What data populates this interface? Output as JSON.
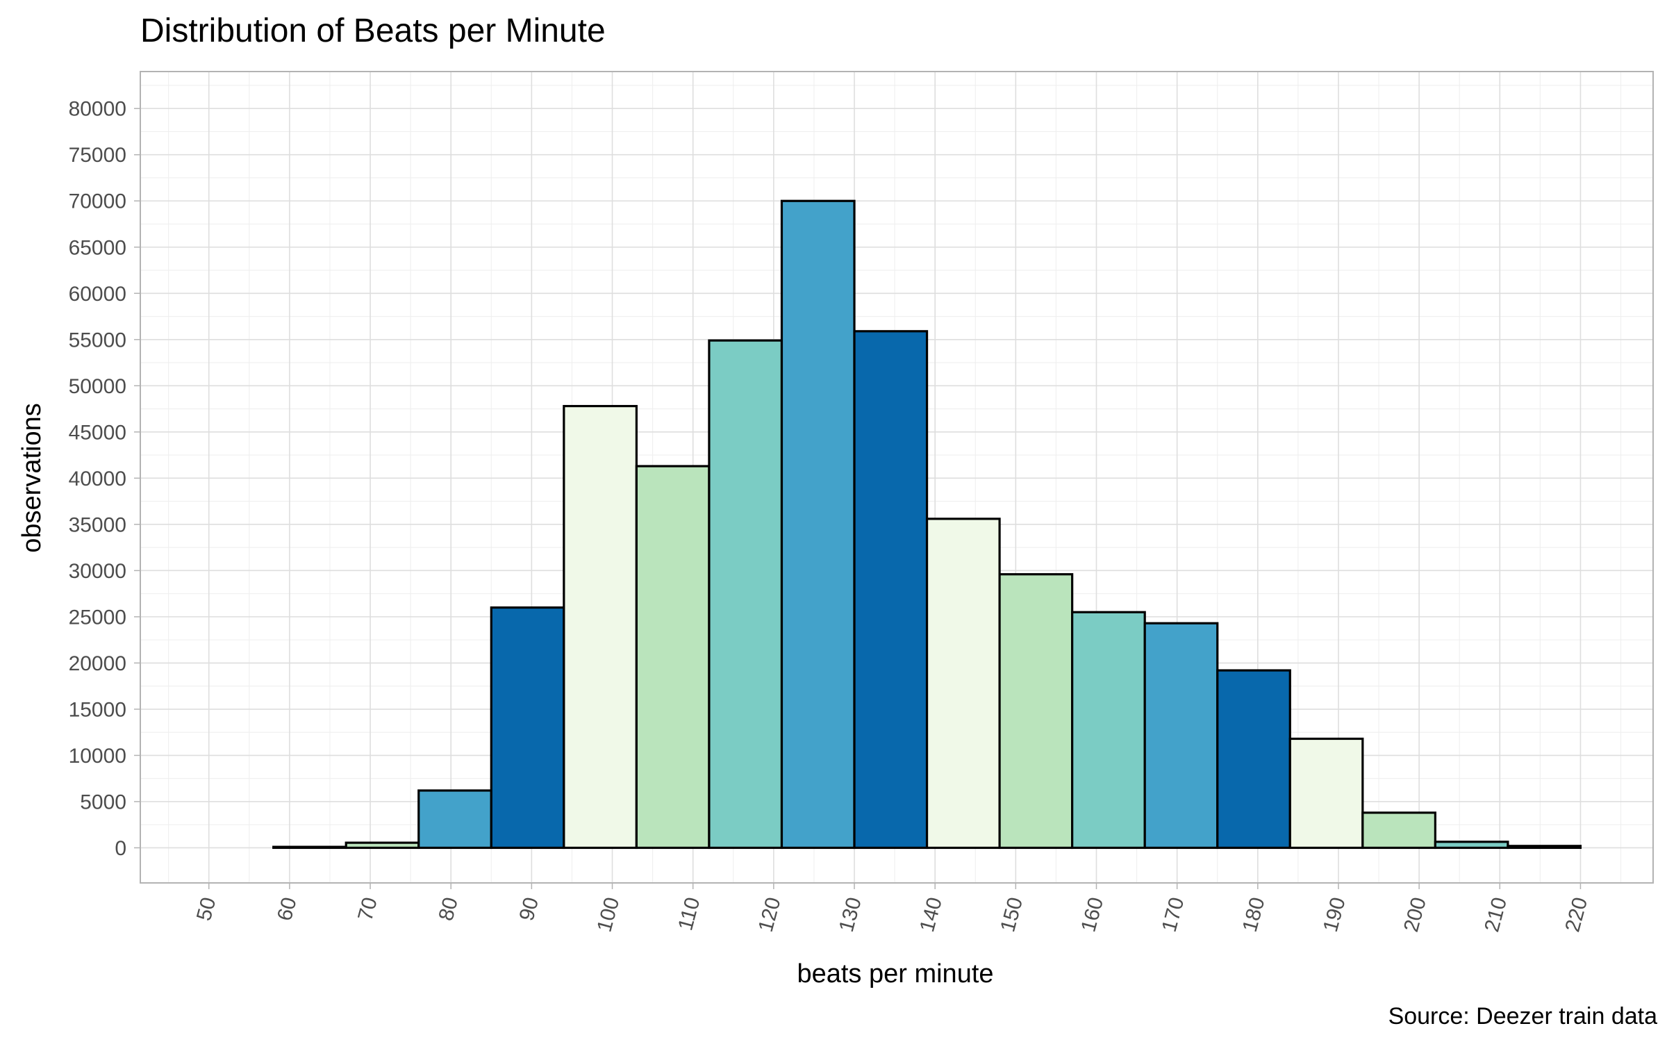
{
  "chart_data": {
    "type": "histogram",
    "title": "Distribution of Beats per Minute",
    "xlabel": "beats per minute",
    "ylabel": "observations",
    "caption": "Source: Deezer train data",
    "xlim": [
      41.5,
      229
    ],
    "ylim": [
      -3800,
      84000
    ],
    "x_ticks": [
      50,
      60,
      70,
      80,
      90,
      100,
      110,
      120,
      130,
      140,
      150,
      160,
      170,
      180,
      190,
      200,
      210,
      220
    ],
    "y_ticks": [
      0,
      5000,
      10000,
      15000,
      20000,
      25000,
      30000,
      35000,
      40000,
      45000,
      50000,
      55000,
      60000,
      65000,
      70000,
      75000,
      80000
    ],
    "x_tick_labels": [
      "50",
      "60",
      "70",
      "80",
      "90",
      "100",
      "110",
      "120",
      "130",
      "140",
      "150",
      "160",
      "170",
      "180",
      "190",
      "200",
      "210",
      "220"
    ],
    "y_tick_labels": [
      "0",
      "5000",
      "10000",
      "15000",
      "20000",
      "25000",
      "30000",
      "35000",
      "40000",
      "45000",
      "50000",
      "55000",
      "60000",
      "65000",
      "70000",
      "75000",
      "80000"
    ],
    "grid": true,
    "bin_width": 9,
    "bins": [
      {
        "x_start": 58,
        "x_end": 67,
        "count": 100,
        "color": "#f0f9e8"
      },
      {
        "x_start": 67,
        "x_end": 76,
        "count": 550,
        "color": "#bae4bc"
      },
      {
        "x_start": 76,
        "x_end": 85,
        "count": 6200,
        "color": "#43a2ca"
      },
      {
        "x_start": 85,
        "x_end": 94,
        "count": 26000,
        "color": "#0868ac"
      },
      {
        "x_start": 94,
        "x_end": 103,
        "count": 47800,
        "color": "#f0f9e8"
      },
      {
        "x_start": 103,
        "x_end": 112,
        "count": 41300,
        "color": "#bae4bc"
      },
      {
        "x_start": 112,
        "x_end": 121,
        "count": 54900,
        "color": "#7bccc4"
      },
      {
        "x_start": 121,
        "x_end": 130,
        "count": 70000,
        "color": "#43a2ca"
      },
      {
        "x_start": 130,
        "x_end": 139,
        "count": 55900,
        "color": "#0868ac"
      },
      {
        "x_start": 139,
        "x_end": 148,
        "count": 35600,
        "color": "#f0f9e8"
      },
      {
        "x_start": 148,
        "x_end": 157,
        "count": 29600,
        "color": "#bae4bc"
      },
      {
        "x_start": 157,
        "x_end": 166,
        "count": 25500,
        "color": "#7bccc4"
      },
      {
        "x_start": 166,
        "x_end": 175,
        "count": 24300,
        "color": "#43a2ca"
      },
      {
        "x_start": 175,
        "x_end": 184,
        "count": 19200,
        "color": "#0868ac"
      },
      {
        "x_start": 184,
        "x_end": 193,
        "count": 11800,
        "color": "#f0f9e8"
      },
      {
        "x_start": 193,
        "x_end": 202,
        "count": 3800,
        "color": "#bae4bc"
      },
      {
        "x_start": 202,
        "x_end": 211,
        "count": 650,
        "color": "#7bccc4"
      },
      {
        "x_start": 211,
        "x_end": 220,
        "count": 200,
        "color": "#43a2ca"
      }
    ]
  }
}
